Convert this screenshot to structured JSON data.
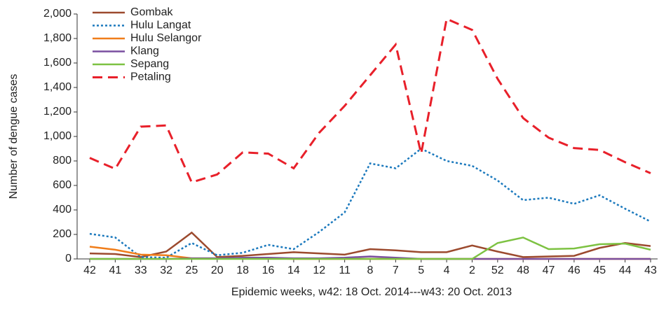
{
  "chart_data": {
    "type": "line",
    "x_label": "Epidemic weeks, w42: 18 Oct. 2014---w43: 20 Oct. 2013",
    "y_label": "Number of dengue cases",
    "categories": [
      "42",
      "41",
      "33",
      "32",
      "25",
      "20",
      "18",
      "16",
      "14",
      "12",
      "11",
      "8",
      "7",
      "5",
      "4",
      "2",
      "52",
      "48",
      "47",
      "46",
      "45",
      "44",
      "43"
    ],
    "series": [
      {
        "name": "Gombak",
        "color": "#9c4a2e",
        "style": "solid",
        "values": [
          45,
          40,
          15,
          60,
          215,
          15,
          25,
          40,
          55,
          45,
          35,
          80,
          70,
          55,
          55,
          110,
          60,
          15,
          20,
          25,
          90,
          130,
          105
        ]
      },
      {
        "name": "Hulu Langat",
        "color": "#1b79bd",
        "style": "dotted",
        "values": [
          205,
          175,
          15,
          10,
          130,
          30,
          50,
          115,
          80,
          220,
          380,
          780,
          740,
          900,
          800,
          760,
          640,
          480,
          500,
          450,
          520,
          410,
          305
        ]
      },
      {
        "name": "Hulu Selangor",
        "color": "#f07d1a",
        "style": "solid",
        "values": [
          100,
          75,
          35,
          30,
          5,
          5,
          5,
          5,
          0,
          0,
          0,
          0,
          0,
          0,
          0,
          0,
          0,
          0,
          0,
          0,
          0,
          0,
          0
        ]
      },
      {
        "name": "Klang",
        "color": "#7a4fa0",
        "style": "solid",
        "values": [
          0,
          0,
          0,
          0,
          5,
          5,
          10,
          10,
          5,
          5,
          10,
          20,
          10,
          0,
          0,
          0,
          0,
          0,
          0,
          0,
          0,
          0,
          0
        ]
      },
      {
        "name": "Sepang",
        "color": "#7dc242",
        "style": "solid",
        "values": [
          0,
          0,
          0,
          0,
          0,
          0,
          0,
          0,
          0,
          0,
          0,
          0,
          0,
          0,
          0,
          0,
          130,
          175,
          80,
          85,
          120,
          125,
          75
        ]
      },
      {
        "name": "Petaling",
        "color": "#e8202a",
        "style": "dashed",
        "values": [
          825,
          735,
          1080,
          1090,
          625,
          690,
          870,
          860,
          740,
          1030,
          1250,
          1500,
          1750,
          860,
          1960,
          1870,
          1470,
          1150,
          990,
          905,
          890,
          790,
          700
        ]
      }
    ],
    "ylim": [
      0,
      2000
    ],
    "yticks": [
      0,
      200,
      400,
      600,
      800,
      {
        "value": 1000,
        "label": "1,000"
      },
      {
        "value": 1200,
        "label": "1,200"
      },
      {
        "value": 1400,
        "label": "1,400"
      },
      {
        "value": 1600,
        "label": "1,600"
      },
      {
        "value": 1800,
        "label": "1,800"
      },
      {
        "value": 2000,
        "label": "2,000"
      }
    ]
  }
}
